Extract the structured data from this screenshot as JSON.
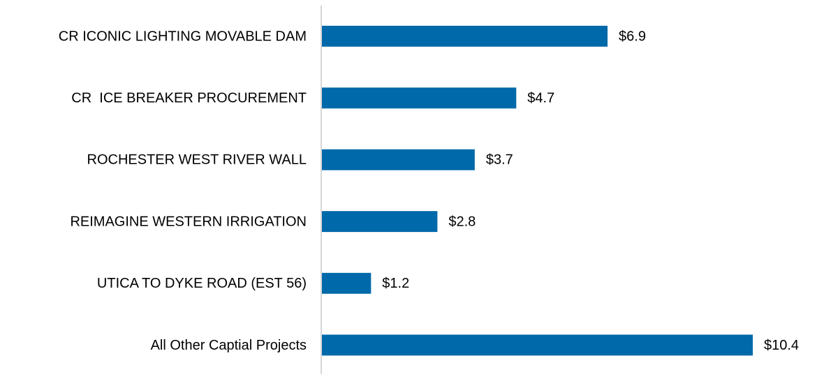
{
  "chart_data": {
    "type": "bar",
    "orientation": "horizontal",
    "categories": [
      "CR ICONIC LIGHTING MOVABLE DAM",
      "CR  ICE BREAKER PROCUREMENT",
      "ROCHESTER WEST RIVER WALL",
      "REIMAGINE WESTERN IRRIGATION",
      "UTICA TO DYKE ROAD (EST 56)",
      "All Other Captial Projects"
    ],
    "values": [
      6.9,
      4.7,
      3.7,
      2.8,
      1.2,
      10.4
    ],
    "value_labels": [
      "$6.9",
      "$4.7",
      "$3.7",
      "$2.8",
      "$1.2",
      "$10.4"
    ],
    "color": "#0069a9"
  }
}
